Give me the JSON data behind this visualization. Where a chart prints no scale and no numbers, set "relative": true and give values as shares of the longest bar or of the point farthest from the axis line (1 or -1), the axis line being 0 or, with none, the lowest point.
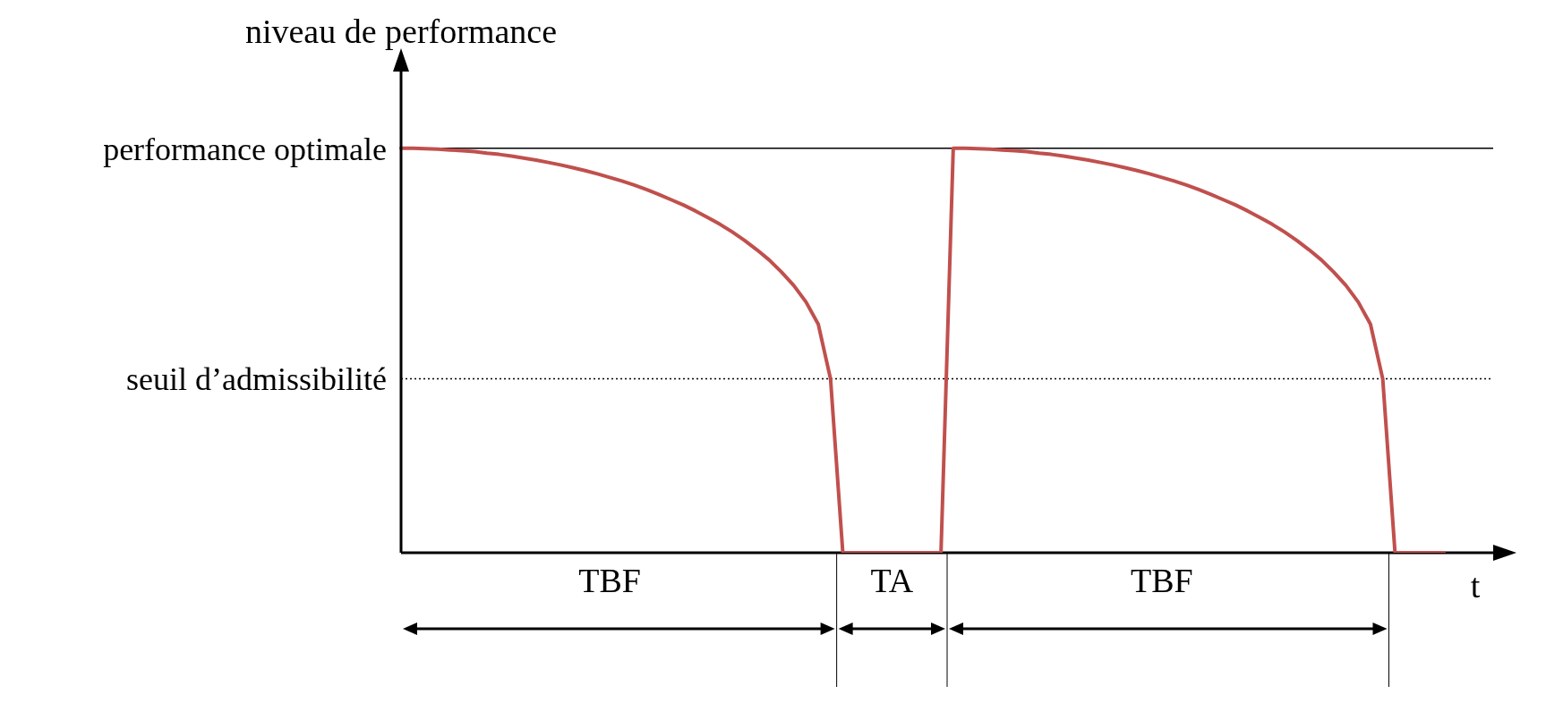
{
  "chart_data": {
    "type": "line",
    "relative": true,
    "xlabel": "t",
    "ylabel": "niveau de performance",
    "marker": "none",
    "line_style": "solid",
    "categories": [
      null,
      null,
      null,
      null,
      null,
      null,
      null,
      null,
      null,
      null,
      null,
      null,
      null,
      null,
      null,
      null,
      null,
      "TBF",
      null,
      null,
      null,
      null,
      null,
      null,
      null,
      null,
      null,
      null,
      null,
      null,
      null,
      null,
      null,
      null,
      null,
      null,
      null,
      null,
      null,
      null,
      "TA",
      null,
      null,
      null,
      null,
      null,
      null,
      null,
      null,
      null,
      null,
      null,
      null,
      null,
      null,
      null,
      null,
      null,
      null,
      null,
      null,
      null,
      "TBF",
      null,
      null,
      null,
      null,
      null,
      null,
      null,
      null,
      null,
      null,
      null,
      null,
      null,
      null,
      null,
      null,
      null,
      null,
      null,
      null,
      null,
      null,
      null,
      null,
      null,
      null,
      null
    ],
    "series": [
      {
        "color": "#c0504d",
        "values": [
          1,
          1,
          0.999,
          0.998,
          0.996,
          0.994,
          0.992,
          0.988,
          0.985,
          0.981,
          0.976,
          0.971,
          0.965,
          0.959,
          0.952,
          0.945,
          0.937,
          0.928,
          0.919,
          0.909,
          0.898,
          0.886,
          0.873,
          0.86,
          0.845,
          0.829,
          0.812,
          0.793,
          0.772,
          0.749,
          0.724,
          0.694,
          0.661,
          0.62,
          0.565,
          0.43,
          0,
          0,
          0,
          0,
          0,
          0,
          0,
          0,
          0,
          1,
          1,
          0.999,
          0.998,
          0.996,
          0.994,
          0.992,
          0.988,
          0.985,
          0.981,
          0.976,
          0.971,
          0.965,
          0.959,
          0.952,
          0.945,
          0.937,
          0.928,
          0.919,
          0.909,
          0.898,
          0.886,
          0.873,
          0.86,
          0.845,
          0.829,
          0.812,
          0.793,
          0.772,
          0.749,
          0.724,
          0.694,
          0.661,
          0.62,
          0.565,
          0.43,
          0,
          0,
          0,
          0,
          0,
          null,
          null,
          null,
          null
        ]
      }
    ],
    "ref_lines": [
      {
        "axis": "y",
        "value": 1,
        "label": "performance optimale",
        "color": "#000000",
        "line_style": "solid"
      },
      {
        "axis": "y",
        "value": 0.43,
        "label": "seuil d’admissibilité",
        "color": "#000000",
        "line_style": "dotted"
      }
    ]
  }
}
